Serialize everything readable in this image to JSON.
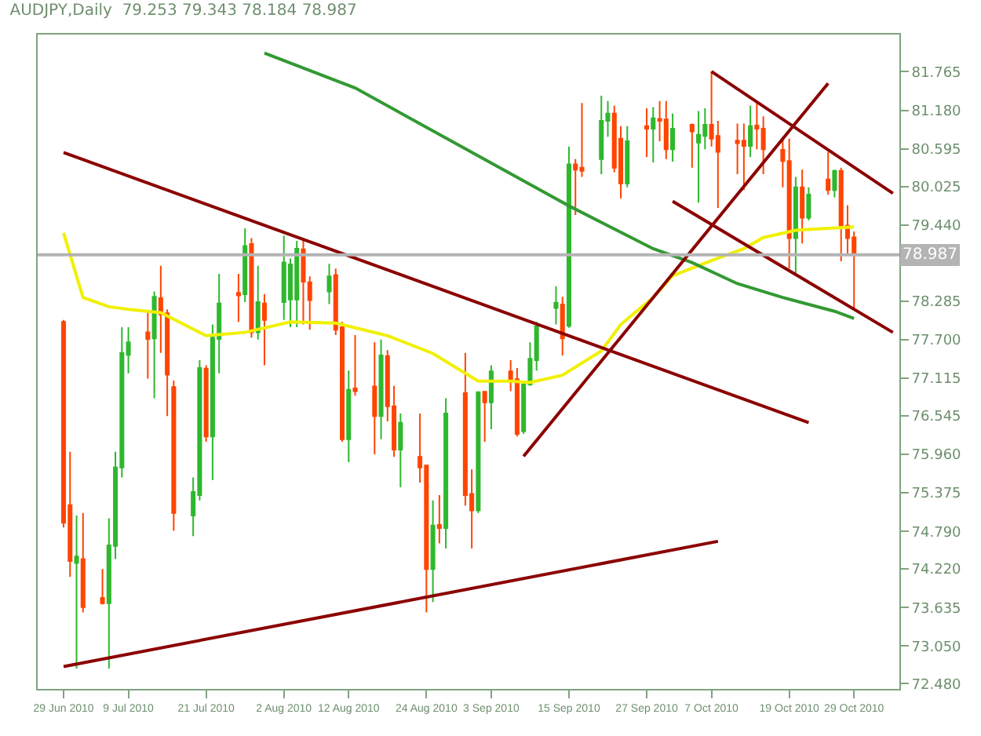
{
  "chart_data": {
    "type": "candlestick",
    "title": "AUDJPY,Daily  79.253 79.343 78.184 78.987",
    "x": [
      "2010-06-29",
      "2010-06-30",
      "2010-07-01",
      "2010-07-02",
      "2010-07-05",
      "2010-07-06",
      "2010-07-07",
      "2010-07-08",
      "2010-07-09",
      "2010-07-12",
      "2010-07-13",
      "2010-07-14",
      "2010-07-15",
      "2010-07-16",
      "2010-07-19",
      "2010-07-20",
      "2010-07-21",
      "2010-07-22",
      "2010-07-23",
      "2010-07-26",
      "2010-07-27",
      "2010-07-28",
      "2010-07-29",
      "2010-07-30",
      "2010-08-02",
      "2010-08-03",
      "2010-08-04",
      "2010-08-05",
      "2010-08-06",
      "2010-08-09",
      "2010-08-10",
      "2010-08-11",
      "2010-08-12",
      "2010-08-13",
      "2010-08-16",
      "2010-08-17",
      "2010-08-18",
      "2010-08-19",
      "2010-08-20",
      "2010-08-23",
      "2010-08-24",
      "2010-08-25",
      "2010-08-26",
      "2010-08-27",
      "2010-08-30",
      "2010-08-31",
      "2010-09-01",
      "2010-09-02",
      "2010-09-03",
      "2010-09-06",
      "2010-09-07",
      "2010-09-08",
      "2010-09-09",
      "2010-09-10",
      "2010-09-13",
      "2010-09-14",
      "2010-09-15",
      "2010-09-16",
      "2010-09-17",
      "2010-09-20",
      "2010-09-21",
      "2010-09-22",
      "2010-09-23",
      "2010-09-24",
      "2010-09-27",
      "2010-09-28",
      "2010-09-29",
      "2010-09-30",
      "2010-10-01",
      "2010-10-04",
      "2010-10-05",
      "2010-10-06",
      "2010-10-07",
      "2010-10-08",
      "2010-10-11",
      "2010-10-12",
      "2010-10-13",
      "2010-10-14",
      "2010-10-15",
      "2010-10-18",
      "2010-10-19",
      "2010-10-20",
      "2010-10-21",
      "2010-10-22",
      "2010-10-25",
      "2010-10-26",
      "2010-10-27",
      "2010-10-28",
      "2010-10-29"
    ],
    "ohlc": [
      [
        77.97,
        78.0,
        74.85,
        74.92
      ],
      [
        75.19,
        76.0,
        74.1,
        74.34
      ],
      [
        74.31,
        75.03,
        72.71,
        74.41
      ],
      [
        74.37,
        75.07,
        73.56,
        73.64
      ],
      [
        73.78,
        74.22,
        73.68,
        73.7
      ],
      [
        73.7,
        74.99,
        72.71,
        74.58
      ],
      [
        74.57,
        76.0,
        74.37,
        75.76
      ],
      [
        75.76,
        77.89,
        75.61,
        77.5
      ],
      [
        77.47,
        77.89,
        77.19,
        77.66
      ],
      [
        77.81,
        78.12,
        77.11,
        77.71
      ],
      [
        77.72,
        78.43,
        76.81,
        78.35
      ],
      [
        78.33,
        78.82,
        77.5,
        78.08
      ],
      [
        78.1,
        78.16,
        76.54,
        77.17
      ],
      [
        76.98,
        77.08,
        74.8,
        75.07
      ],
      [
        75.03,
        75.61,
        74.72,
        75.39
      ],
      [
        75.34,
        77.39,
        75.26,
        77.27
      ],
      [
        77.26,
        77.31,
        76.15,
        76.23
      ],
      [
        76.23,
        77.93,
        75.57,
        77.73
      ],
      [
        77.71,
        78.7,
        77.19,
        78.25
      ],
      [
        78.41,
        78.7,
        77.97,
        78.37
      ],
      [
        78.39,
        79.39,
        78.27,
        79.12
      ],
      [
        79.15,
        79.24,
        77.73,
        77.81
      ],
      [
        77.81,
        78.82,
        77.7,
        78.27
      ],
      [
        78.25,
        78.39,
        77.31,
        78.0
      ],
      [
        78.27,
        79.28,
        78.0,
        78.87
      ],
      [
        78.31,
        78.93,
        77.89,
        78.84
      ],
      [
        78.31,
        79.2,
        77.89,
        79.08
      ],
      [
        79.07,
        79.24,
        77.93,
        78.58
      ],
      [
        78.57,
        78.66,
        77.85,
        78.3
      ],
      [
        78.43,
        78.85,
        78.24,
        78.66
      ],
      [
        78.68,
        78.78,
        77.77,
        77.85
      ],
      [
        77.89,
        77.97,
        76.15,
        76.19
      ],
      [
        76.19,
        77.23,
        75.84,
        76.94
      ],
      [
        76.96,
        77.77,
        76.85,
        76.92
      ],
      [
        76.99,
        77.66,
        75.96,
        76.54
      ],
      [
        76.54,
        77.7,
        76.19,
        77.46
      ],
      [
        77.45,
        77.54,
        76.46,
        76.69
      ],
      [
        76.69,
        77.0,
        75.92,
        76.03
      ],
      [
        76.03,
        76.58,
        75.46,
        76.44
      ],
      [
        75.92,
        76.58,
        75.53,
        75.76
      ],
      [
        75.79,
        75.8,
        73.56,
        74.22
      ],
      [
        74.22,
        75.26,
        73.72,
        74.88
      ],
      [
        74.89,
        75.34,
        74.61,
        74.84
      ],
      [
        74.84,
        76.81,
        74.53,
        76.58
      ],
      [
        76.89,
        77.5,
        75.18,
        75.34
      ],
      [
        75.36,
        75.73,
        74.53,
        75.11
      ],
      [
        75.11,
        76.92,
        75.07,
        76.9
      ],
      [
        76.91,
        76.92,
        76.15,
        76.75
      ],
      [
        76.75,
        77.31,
        76.34,
        77.22
      ],
      [
        77.22,
        77.39,
        76.92,
        77.1
      ],
      [
        77.1,
        77.27,
        76.23,
        76.27
      ],
      [
        76.31,
        77.04,
        76.27,
        77.02
      ],
      [
        77.02,
        77.66,
        77.0,
        77.41
      ],
      [
        77.39,
        77.97,
        77.23,
        77.9
      ],
      [
        78.18,
        78.51,
        77.93,
        78.26
      ],
      [
        78.23,
        78.35,
        77.46,
        77.72
      ],
      [
        77.91,
        80.63,
        77.88,
        80.36
      ],
      [
        80.36,
        80.44,
        79.59,
        80.28
      ],
      [
        80.31,
        81.29,
        80.17,
        80.26
      ],
      [
        80.44,
        81.4,
        80.21,
        81.02
      ],
      [
        81.02,
        81.32,
        80.78,
        81.13
      ],
      [
        81.13,
        81.25,
        80.24,
        80.31
      ],
      [
        80.75,
        80.94,
        79.84,
        80.07
      ],
      [
        80.07,
        80.94,
        80.01,
        80.71
      ],
      [
        80.94,
        81.21,
        80.47,
        80.9
      ],
      [
        80.9,
        81.23,
        80.39,
        81.06
      ],
      [
        81.05,
        81.32,
        80.71,
        81.02
      ],
      [
        81.04,
        81.32,
        80.44,
        80.59
      ],
      [
        80.59,
        81.13,
        80.4,
        80.9
      ],
      [
        80.96,
        80.98,
        80.31,
        80.86
      ],
      [
        80.69,
        81.17,
        79.78,
        80.81
      ],
      [
        80.79,
        81.21,
        80.59,
        80.96
      ],
      [
        80.96,
        81.77,
        80.63,
        80.75
      ],
      [
        80.79,
        81.02,
        79.7,
        80.55
      ],
      [
        80.72,
        80.98,
        80.21,
        80.68
      ],
      [
        80.72,
        80.98,
        79.97,
        80.64
      ],
      [
        80.64,
        81.25,
        80.47,
        80.94
      ],
      [
        80.95,
        81.32,
        80.59,
        80.9
      ],
      [
        80.9,
        81.09,
        80.21,
        80.59
      ],
      [
        80.58,
        80.78,
        80.01,
        80.41
      ],
      [
        80.41,
        80.75,
        78.78,
        79.24
      ],
      [
        79.24,
        80.17,
        78.7,
        80.01
      ],
      [
        80.01,
        80.28,
        79.16,
        79.55
      ],
      [
        79.55,
        80.01,
        79.51,
        79.9
      ],
      [
        80.13,
        80.55,
        79.9,
        79.97
      ],
      [
        79.97,
        80.28,
        79.86,
        80.26
      ],
      [
        80.26,
        80.31,
        78.89,
        79.43
      ],
      [
        79.43,
        79.74,
        79.0,
        79.24
      ],
      [
        79.253,
        79.343,
        78.184,
        78.987
      ]
    ],
    "colors": [
      "#ff4500",
      "#ff4500",
      "#2eb82e",
      "#ff4500",
      "#ff4500",
      "#2eb82e",
      "#2eb82e",
      "#2eb82e",
      "#2eb82e",
      "#ff4500",
      "#2eb82e",
      "#ff4500",
      "#ff4500",
      "#ff4500",
      "#2eb82e",
      "#2eb82e",
      "#ff4500",
      "#2eb82e",
      "#2eb82e",
      "#ff4500",
      "#2eb82e",
      "#ff4500",
      "#2eb82e",
      "#ff4500",
      "#2eb82e",
      "#2eb82e",
      "#2eb82e",
      "#ff4500",
      "#ff4500",
      "#2eb82e",
      "#ff4500",
      "#ff4500",
      "#2eb82e",
      "#ff4500",
      "#ff4500",
      "#2eb82e",
      "#ff4500",
      "#ff4500",
      "#2eb82e",
      "#ff4500",
      "#ff4500",
      "#2eb82e",
      "#ff4500",
      "#2eb82e",
      "#ff4500",
      "#ff4500",
      "#2eb82e",
      "#ff4500",
      "#2eb82e",
      "#ff4500",
      "#ff4500",
      "#2eb82e",
      "#2eb82e",
      "#2eb82e",
      "#2eb82e",
      "#ff4500",
      "#2eb82e",
      "#ff4500",
      "#ff4500",
      "#2eb82e",
      "#2eb82e",
      "#ff4500",
      "#ff4500",
      "#2eb82e",
      "#ff4500",
      "#2eb82e",
      "#ff4500",
      "#ff4500",
      "#2eb82e",
      "#ff4500",
      "#2eb82e",
      "#2eb82e",
      "#ff4500",
      "#ff4500",
      "#ff4500",
      "#ff4500",
      "#2eb82e",
      "#ff4500",
      "#ff4500",
      "#ff4500",
      "#ff4500",
      "#2eb82e",
      "#ff4500",
      "#2eb82e",
      "#ff4500",
      "#2eb82e",
      "#ff4500",
      "#ff4500",
      "#ff4500"
    ],
    "series": [
      {
        "type": "line",
        "color": "#f0f000",
        "x": [
          "2010-06-29",
          "2010-07-02",
          "2010-07-06",
          "2010-07-09",
          "2010-07-14",
          "2010-07-21",
          "2010-07-27",
          "2010-08-03",
          "2010-08-10",
          "2010-08-13",
          "2010-08-18",
          "2010-08-25",
          "2010-09-01",
          "2010-09-06",
          "2010-09-09",
          "2010-09-14",
          "2010-09-20",
          "2010-09-23",
          "2010-09-28",
          "2010-10-01",
          "2010-10-07",
          "2010-10-12",
          "2010-10-15",
          "2010-10-20",
          "2010-10-25",
          "2010-10-29"
        ],
        "values": [
          79.32,
          78.34,
          78.2,
          78.16,
          78.11,
          77.76,
          77.81,
          77.97,
          77.95,
          77.88,
          77.76,
          77.49,
          77.07,
          77.07,
          77.05,
          77.16,
          77.53,
          77.93,
          78.34,
          78.67,
          78.9,
          79.08,
          79.25,
          79.36,
          79.39,
          79.41
        ]
      },
      {
        "type": "line",
        "color": "#339933",
        "x": [
          "2010-07-30",
          "2010-08-13",
          "2010-09-03",
          "2010-09-15",
          "2010-09-28",
          "2010-10-04",
          "2010-10-11",
          "2010-10-18",
          "2010-10-26",
          "2010-10-29"
        ],
        "values": [
          82.05,
          81.52,
          80.38,
          79.73,
          79.08,
          78.87,
          78.55,
          78.34,
          78.13,
          78.02
        ]
      },
      {
        "type": "line",
        "color": "#8b0000",
        "x": [
          "2010-06-29",
          "2010-10-22"
        ],
        "values": [
          80.54,
          76.44
        ]
      },
      {
        "type": "line",
        "color": "#8b0000",
        "x": [
          "2010-06-29",
          "2010-10-08"
        ],
        "values": [
          72.74,
          74.64
        ]
      },
      {
        "type": "line",
        "color": "#8b0000",
        "x": [
          "2010-10-07",
          "2010-11-04"
        ],
        "values": [
          81.77,
          79.92
        ]
      },
      {
        "type": "line",
        "color": "#8b0000",
        "x": [
          "2010-10-01",
          "2010-11-04"
        ],
        "values": [
          79.8,
          77.81
        ]
      },
      {
        "type": "line",
        "color": "#8b0000",
        "x": [
          "2010-09-08",
          "2010-10-25"
        ],
        "values": [
          75.93,
          81.59
        ]
      }
    ],
    "xlim": [
      "2010-06-25",
      "2010-11-05"
    ],
    "xticks": [
      {
        "value": "2010-06-29",
        "label": "29 Jun 2010"
      },
      {
        "value": "2010-07-09",
        "label": "9 Jul 2010"
      },
      {
        "value": "2010-07-21",
        "label": "21 Jul 2010"
      },
      {
        "value": "2010-08-02",
        "label": "2 Aug 2010"
      },
      {
        "value": "2010-08-12",
        "label": "12 Aug 2010"
      },
      {
        "value": "2010-08-24",
        "label": "24 Aug 2010"
      },
      {
        "value": "2010-09-03",
        "label": "3 Sep 2010"
      },
      {
        "value": "2010-09-15",
        "label": "15 Sep 2010"
      },
      {
        "value": "2010-09-27",
        "label": "27 Sep 2010"
      },
      {
        "value": "2010-10-07",
        "label": "7 Oct 2010"
      },
      {
        "value": "2010-10-19",
        "label": "19 Oct 2010"
      },
      {
        "value": "2010-10-29",
        "label": "29 Oct 2010"
      }
    ],
    "ylim": [
      72.4,
      82.33
    ],
    "yticks": [
      {
        "value": 72.48,
        "label": "72.480"
      },
      {
        "value": 73.05,
        "label": "73.050"
      },
      {
        "value": 73.635,
        "label": "73.635"
      },
      {
        "value": 74.22,
        "label": "74.220"
      },
      {
        "value": 74.79,
        "label": "74.790"
      },
      {
        "value": 75.375,
        "label": "75.375"
      },
      {
        "value": 75.96,
        "label": "75.960"
      },
      {
        "value": 76.545,
        "label": "76.545"
      },
      {
        "value": 77.115,
        "label": "77.115"
      },
      {
        "value": 77.7,
        "label": "77.700"
      },
      {
        "value": 78.285,
        "label": "78.285"
      },
      {
        "value": 79.44,
        "label": "79.440"
      },
      {
        "value": 80.025,
        "label": "80.025"
      },
      {
        "value": 80.595,
        "label": "80.595"
      },
      {
        "value": 81.18,
        "label": "81.180"
      },
      {
        "value": 81.765,
        "label": "81.765"
      }
    ],
    "ref_lines": [
      {
        "axis": "y",
        "value": 78.987,
        "label": "78.987",
        "color": "#b4b4b4"
      }
    ]
  }
}
